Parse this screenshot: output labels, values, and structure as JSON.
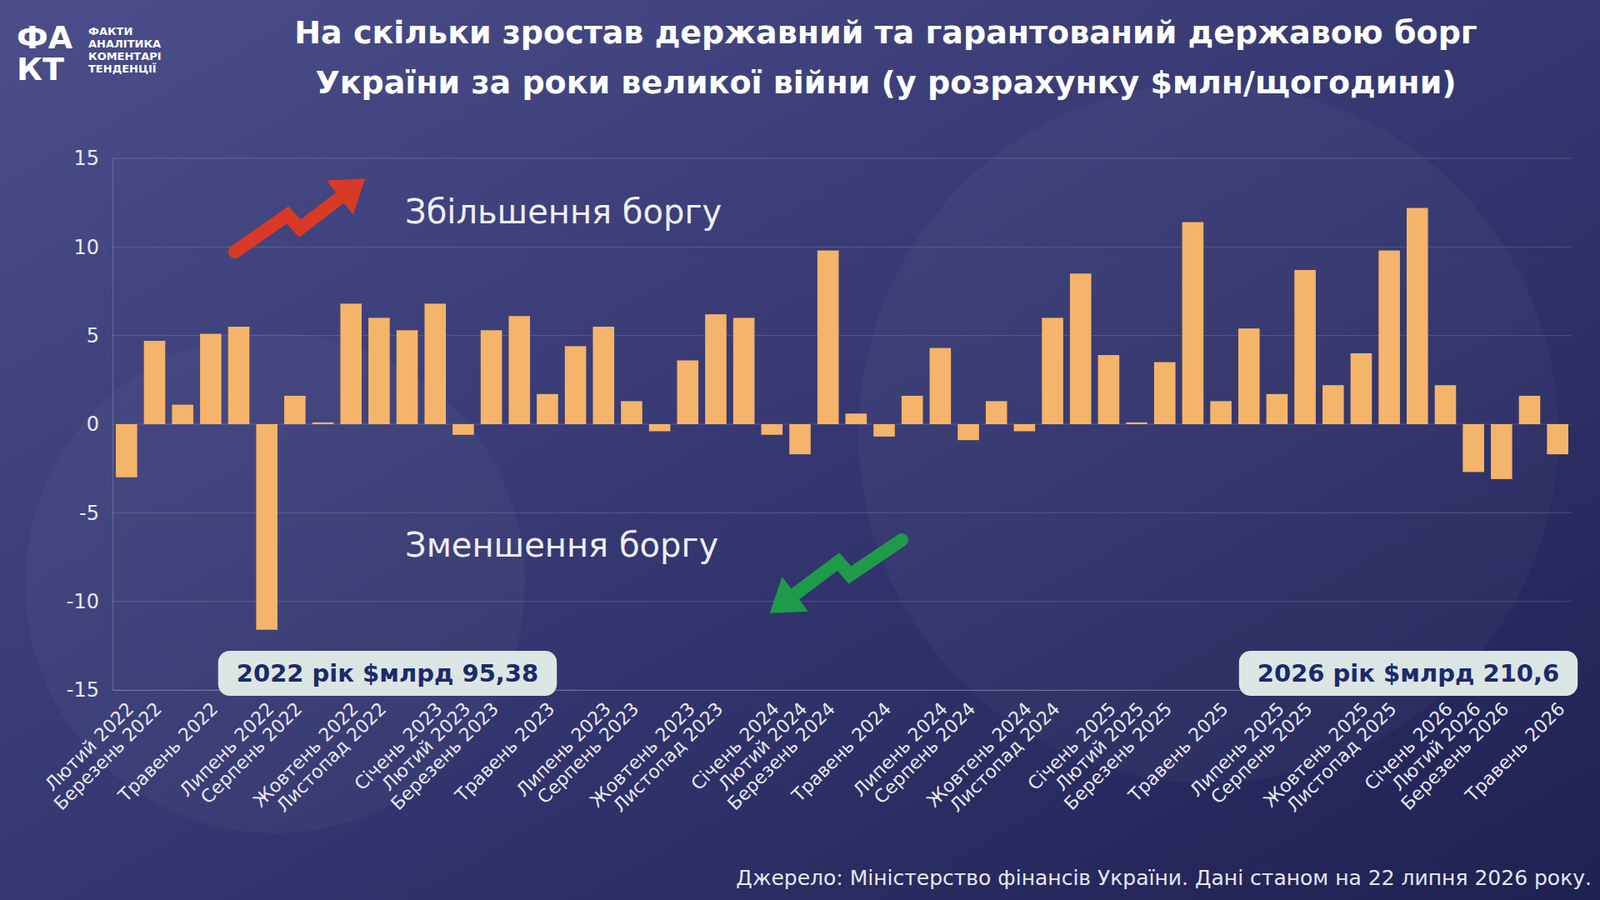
{
  "chart_data": {
    "type": "bar",
    "title": "На скільки зростав державний та гарантований державою борг України за роки великої війни (у розрахунку $млн/щогодини)",
    "categories": [
      "Лютий 2022",
      "Березень 2022",
      null,
      "Травень 2022",
      null,
      "Липень 2022",
      "Серпень 2022",
      null,
      "Жовтень 2022",
      "Листопад 2022",
      null,
      "Січень 2023",
      "Лютий 2023",
      "Березень 2023",
      null,
      "Травень 2023",
      null,
      "Липень 2023",
      "Серпень 2023",
      null,
      "Жовтень 2023",
      "Листопад 2023",
      null,
      "Січень 2024",
      "Лютий 2024",
      "Березень 2024",
      null,
      "Травень 2024",
      null,
      "Липень 2024",
      "Серпень 2024",
      null,
      "Жовтень 2024",
      "Листопад 2024",
      null,
      "Січень 2025",
      "Лютий 2025",
      "Березень 2025",
      null,
      "Травень 2025",
      null,
      "Липень 2025",
      "Серпень 2025",
      null,
      "Жовтень 2025",
      "Листопад 2025",
      null,
      "Січень 2026",
      "Лютий 2026",
      "Березень 2026",
      null,
      "Травень 2026"
    ],
    "values": [
      -3.0,
      4.7,
      1.1,
      5.1,
      5.5,
      -11.6,
      1.6,
      0.1,
      6.8,
      6.0,
      5.3,
      6.8,
      -0.6,
      5.3,
      6.1,
      1.7,
      4.4,
      5.5,
      1.3,
      -0.4,
      3.6,
      6.2,
      6.0,
      -0.6,
      -1.7,
      9.8,
      0.6,
      -0.7,
      1.6,
      4.3,
      -0.9,
      1.3,
      -0.4,
      6.0,
      8.5,
      3.9,
      0.1,
      3.5,
      11.4,
      1.3,
      5.4,
      1.7,
      8.7,
      2.2,
      4.0,
      9.8,
      12.2,
      2.2,
      -2.7,
      -3.1,
      1.6,
      -1.7
    ],
    "color": "#f4b469",
    "ylim": [
      -15,
      15
    ],
    "yticks": [
      -15,
      -10,
      -5,
      0,
      5,
      10,
      15
    ],
    "grid": true,
    "annotations": [
      "Збільшення боргу",
      "Зменшення боргу",
      "2022 рік $млрд 95,38",
      "2026 рік $млрд 210,6"
    ],
    "source": "Джерело: Міністерство фінансів України. Дані станом на 22 липня 2026 року.",
    "logo": [
      "ФА",
      "КТ"
    ],
    "logo_text": [
      "ФАКТИ",
      "АНАЛІТИКА",
      "КОМЕНТАРІ",
      "ТЕНДЕНЦІЇ"
    ]
  }
}
